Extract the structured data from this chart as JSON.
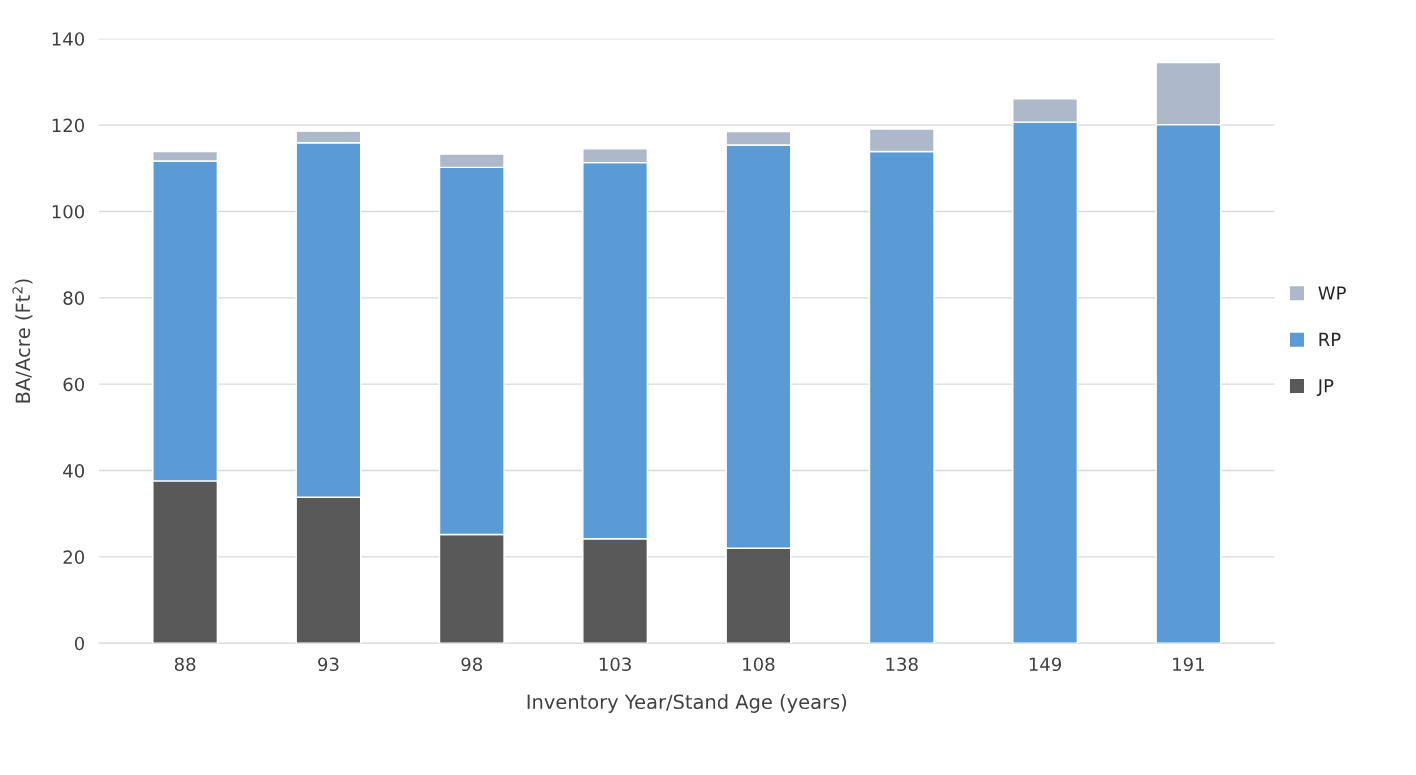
{
  "chart_data": {
    "type": "bar",
    "stacked": true,
    "xlabel": "Inventory Year/Stand Age (years)",
    "ylabel": "BA/Acre (Ft$^{2}$)",
    "categories": [
      "88",
      "93",
      "98",
      "103",
      "108",
      "138",
      "149",
      "191"
    ],
    "series": [
      {
        "name": "JP",
        "color": "#595959",
        "values": [
          37.6,
          33.8,
          25.2,
          24.2,
          22.0,
          null,
          null,
          null
        ]
      },
      {
        "name": "RP",
        "color": "#5b9bd5",
        "values": [
          74.1,
          82.1,
          85.0,
          87.1,
          93.4,
          113.9,
          120.7,
          120.1
        ]
      },
      {
        "name": "WP",
        "color": "#adb9ca",
        "values": [
          2.2,
          2.7,
          3.1,
          3.2,
          3.1,
          5.2,
          5.4,
          14.4
        ]
      }
    ],
    "ylim": [
      0,
      140
    ],
    "yticks": [
      0,
      20,
      40,
      60,
      80,
      100,
      120,
      140
    ],
    "grid": "y",
    "legend": "right"
  }
}
